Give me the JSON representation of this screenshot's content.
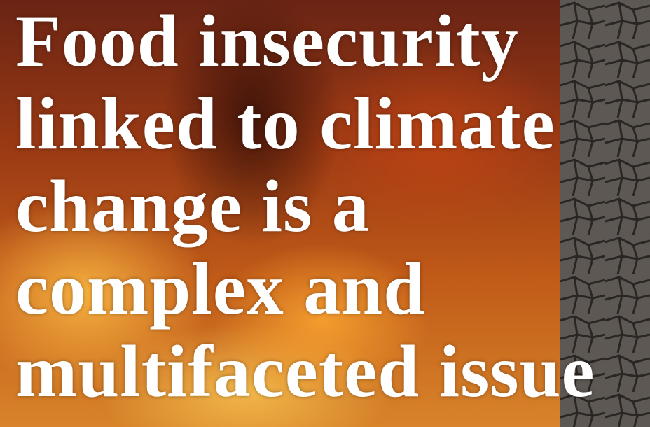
{
  "headline": {
    "lines": [
      "Food insecurity",
      "linked to climate",
      "change is a",
      "complex and",
      "multifaceted issue"
    ]
  }
}
